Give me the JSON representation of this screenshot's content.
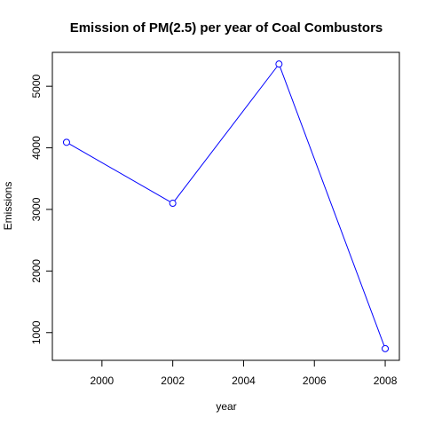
{
  "chart_data": {
    "type": "line",
    "title": "Emission of PM(2.5) per year of Coal Combustors",
    "xlabel": "year",
    "ylabel": "Emissions",
    "x": [
      1999,
      2002,
      2005,
      2008
    ],
    "series": [
      {
        "values": [
          4090,
          3100,
          5360,
          740
        ]
      }
    ],
    "xlim": [
      1998.6,
      2008.4
    ],
    "ylim": [
      550,
      5550
    ],
    "xticks": [
      2000,
      2002,
      2004,
      2006,
      2008
    ],
    "yticks": [
      1000,
      2000,
      3000,
      4000,
      5000
    ],
    "grid": false,
    "legend": "none",
    "line_color": "#0000ff",
    "marker": "open-circle"
  }
}
